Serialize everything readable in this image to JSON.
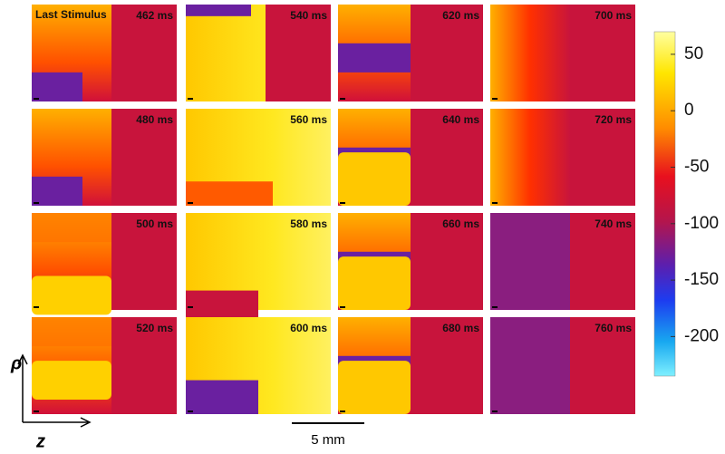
{
  "chart_data": {
    "type": "heatmap_panels",
    "panels": [
      {
        "note": "Last Stimulus",
        "time": "462 ms"
      },
      {
        "time": "540 ms"
      },
      {
        "time": "620 ms"
      },
      {
        "time": "700 ms"
      },
      {
        "time": "480 ms"
      },
      {
        "time": "560 ms"
      },
      {
        "time": "640 ms"
      },
      {
        "time": "720 ms"
      },
      {
        "time": "500 ms"
      },
      {
        "time": "580 ms"
      },
      {
        "time": "660 ms"
      },
      {
        "time": "740 ms"
      },
      {
        "time": "520 ms"
      },
      {
        "time": "600 ms"
      },
      {
        "time": "680 ms"
      },
      {
        "time": "760 ms"
      }
    ],
    "colorbar": {
      "lim": [
        -235,
        70
      ],
      "ticks": [
        50,
        0,
        -50,
        -100,
        -150,
        -200
      ]
    },
    "scale_bar": "5 mm",
    "y_axis_label": "ρ",
    "x_axis_label": "z"
  }
}
